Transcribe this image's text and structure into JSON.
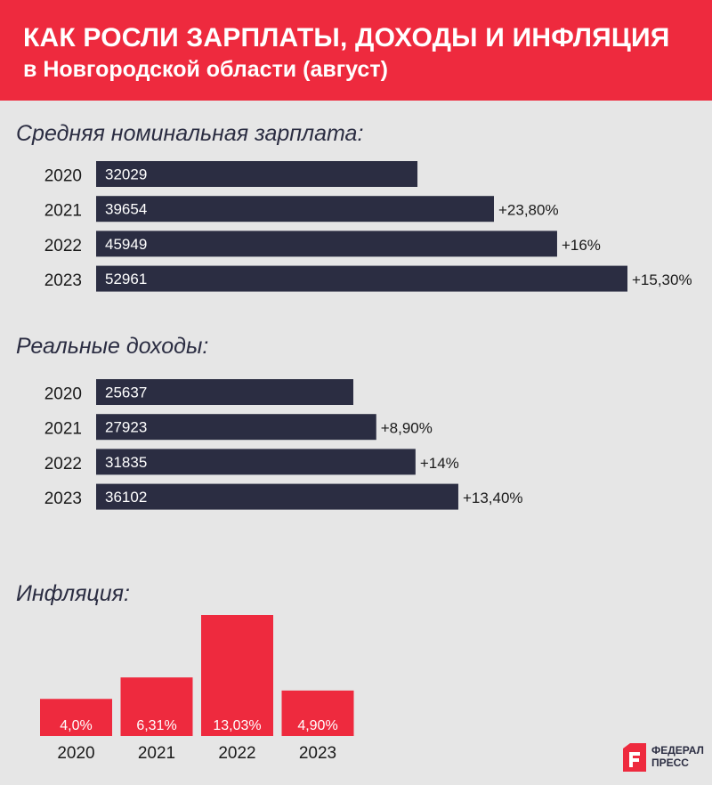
{
  "header": {
    "title": "КАК РОСЛИ ЗАРПЛАТЫ, ДОХОДЫ И ИНФЛЯЦИЯ",
    "subtitle": "в Новгородской области (август)"
  },
  "brand": {
    "line1": "ФЕДЕРАЛ",
    "line2": "ПРЕСС"
  },
  "colors": {
    "accent": "#ee2a3e",
    "bar_dark": "#2b2d42",
    "background": "#e6e6e6"
  },
  "chart_data": [
    {
      "type": "bar",
      "orientation": "horizontal",
      "title": "Средняя номинальная зарплата:",
      "categories": [
        "2020",
        "2021",
        "2022",
        "2023"
      ],
      "values": [
        32029,
        39654,
        45949,
        52961
      ],
      "value_labels": [
        "32029",
        "39654",
        "45949",
        "52961"
      ],
      "change_labels": [
        "",
        "+23,80%",
        "+16%",
        "+15,30%"
      ],
      "color": "#2b2d42"
    },
    {
      "type": "bar",
      "orientation": "horizontal",
      "title": "Реальные доходы:",
      "categories": [
        "2020",
        "2021",
        "2022",
        "2023"
      ],
      "values": [
        25637,
        27923,
        31835,
        36102
      ],
      "value_labels": [
        "25637",
        "27923",
        "31835",
        "36102"
      ],
      "change_labels": [
        "",
        "+8,90%",
        "+14%",
        "+13,40%"
      ],
      "color": "#2b2d42"
    },
    {
      "type": "bar",
      "orientation": "vertical",
      "title": "Инфляция:",
      "categories": [
        "2020",
        "2021",
        "2022",
        "2023"
      ],
      "values": [
        4.0,
        6.31,
        13.03,
        4.9
      ],
      "value_labels": [
        "4,0%",
        "6,31%",
        "13,03%",
        "4,90%"
      ],
      "color": "#ee2a3e"
    }
  ]
}
